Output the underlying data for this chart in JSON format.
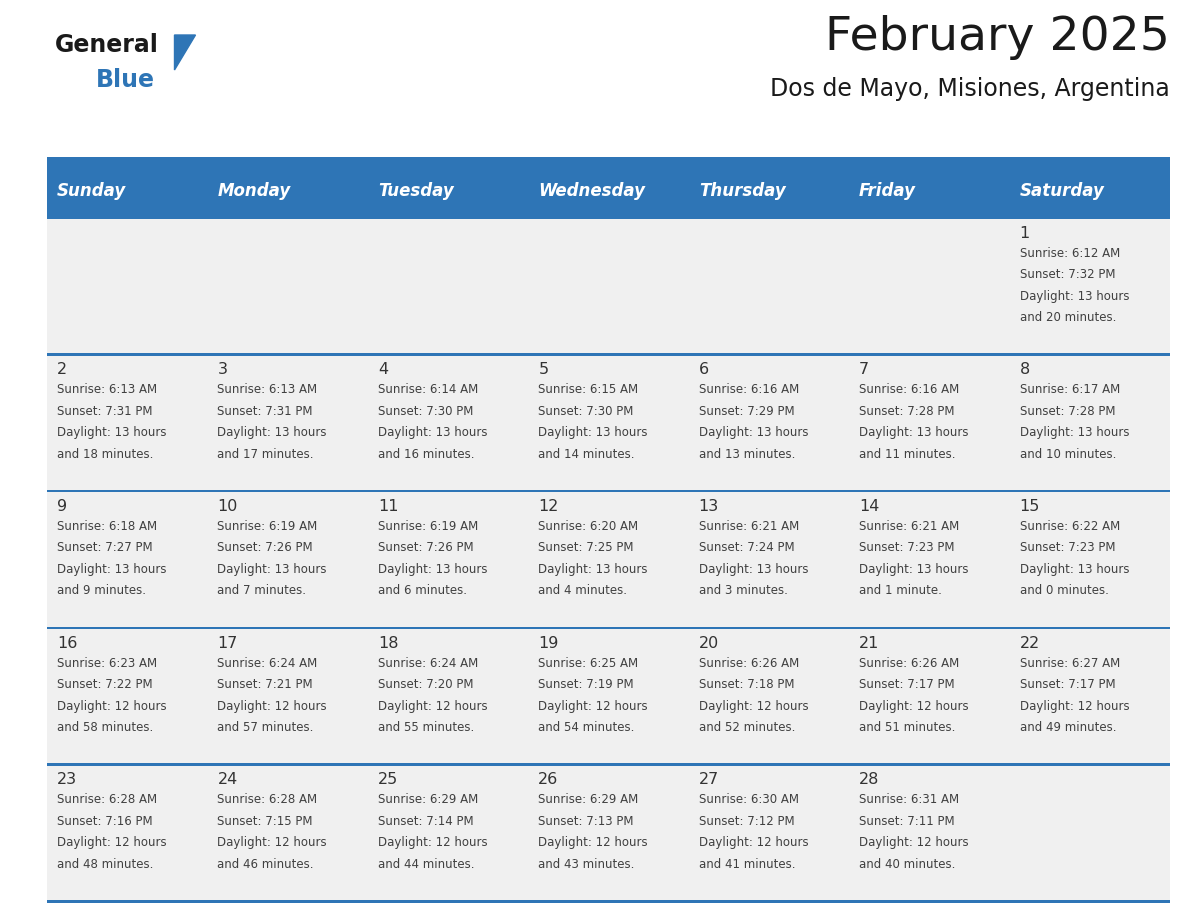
{
  "title": "February 2025",
  "subtitle": "Dos de Mayo, Misiones, Argentina",
  "header_bg_color": "#2e75b6",
  "header_text_color": "#ffffff",
  "cell_bg_color": "#f0f0f0",
  "border_color": "#2e75b6",
  "day_number_color": "#333333",
  "cell_text_color": "#404040",
  "days_of_week": [
    "Sunday",
    "Monday",
    "Tuesday",
    "Wednesday",
    "Thursday",
    "Friday",
    "Saturday"
  ],
  "weeks": [
    [
      {
        "day": "",
        "info": ""
      },
      {
        "day": "",
        "info": ""
      },
      {
        "day": "",
        "info": ""
      },
      {
        "day": "",
        "info": ""
      },
      {
        "day": "",
        "info": ""
      },
      {
        "day": "",
        "info": ""
      },
      {
        "day": "1",
        "info": "Sunrise: 6:12 AM\nSunset: 7:32 PM\nDaylight: 13 hours\nand 20 minutes."
      }
    ],
    [
      {
        "day": "2",
        "info": "Sunrise: 6:13 AM\nSunset: 7:31 PM\nDaylight: 13 hours\nand 18 minutes."
      },
      {
        "day": "3",
        "info": "Sunrise: 6:13 AM\nSunset: 7:31 PM\nDaylight: 13 hours\nand 17 minutes."
      },
      {
        "day": "4",
        "info": "Sunrise: 6:14 AM\nSunset: 7:30 PM\nDaylight: 13 hours\nand 16 minutes."
      },
      {
        "day": "5",
        "info": "Sunrise: 6:15 AM\nSunset: 7:30 PM\nDaylight: 13 hours\nand 14 minutes."
      },
      {
        "day": "6",
        "info": "Sunrise: 6:16 AM\nSunset: 7:29 PM\nDaylight: 13 hours\nand 13 minutes."
      },
      {
        "day": "7",
        "info": "Sunrise: 6:16 AM\nSunset: 7:28 PM\nDaylight: 13 hours\nand 11 minutes."
      },
      {
        "day": "8",
        "info": "Sunrise: 6:17 AM\nSunset: 7:28 PM\nDaylight: 13 hours\nand 10 minutes."
      }
    ],
    [
      {
        "day": "9",
        "info": "Sunrise: 6:18 AM\nSunset: 7:27 PM\nDaylight: 13 hours\nand 9 minutes."
      },
      {
        "day": "10",
        "info": "Sunrise: 6:19 AM\nSunset: 7:26 PM\nDaylight: 13 hours\nand 7 minutes."
      },
      {
        "day": "11",
        "info": "Sunrise: 6:19 AM\nSunset: 7:26 PM\nDaylight: 13 hours\nand 6 minutes."
      },
      {
        "day": "12",
        "info": "Sunrise: 6:20 AM\nSunset: 7:25 PM\nDaylight: 13 hours\nand 4 minutes."
      },
      {
        "day": "13",
        "info": "Sunrise: 6:21 AM\nSunset: 7:24 PM\nDaylight: 13 hours\nand 3 minutes."
      },
      {
        "day": "14",
        "info": "Sunrise: 6:21 AM\nSunset: 7:23 PM\nDaylight: 13 hours\nand 1 minute."
      },
      {
        "day": "15",
        "info": "Sunrise: 6:22 AM\nSunset: 7:23 PM\nDaylight: 13 hours\nand 0 minutes."
      }
    ],
    [
      {
        "day": "16",
        "info": "Sunrise: 6:23 AM\nSunset: 7:22 PM\nDaylight: 12 hours\nand 58 minutes."
      },
      {
        "day": "17",
        "info": "Sunrise: 6:24 AM\nSunset: 7:21 PM\nDaylight: 12 hours\nand 57 minutes."
      },
      {
        "day": "18",
        "info": "Sunrise: 6:24 AM\nSunset: 7:20 PM\nDaylight: 12 hours\nand 55 minutes."
      },
      {
        "day": "19",
        "info": "Sunrise: 6:25 AM\nSunset: 7:19 PM\nDaylight: 12 hours\nand 54 minutes."
      },
      {
        "day": "20",
        "info": "Sunrise: 6:26 AM\nSunset: 7:18 PM\nDaylight: 12 hours\nand 52 minutes."
      },
      {
        "day": "21",
        "info": "Sunrise: 6:26 AM\nSunset: 7:17 PM\nDaylight: 12 hours\nand 51 minutes."
      },
      {
        "day": "22",
        "info": "Sunrise: 6:27 AM\nSunset: 7:17 PM\nDaylight: 12 hours\nand 49 minutes."
      }
    ],
    [
      {
        "day": "23",
        "info": "Sunrise: 6:28 AM\nSunset: 7:16 PM\nDaylight: 12 hours\nand 48 minutes."
      },
      {
        "day": "24",
        "info": "Sunrise: 6:28 AM\nSunset: 7:15 PM\nDaylight: 12 hours\nand 46 minutes."
      },
      {
        "day": "25",
        "info": "Sunrise: 6:29 AM\nSunset: 7:14 PM\nDaylight: 12 hours\nand 44 minutes."
      },
      {
        "day": "26",
        "info": "Sunrise: 6:29 AM\nSunset: 7:13 PM\nDaylight: 12 hours\nand 43 minutes."
      },
      {
        "day": "27",
        "info": "Sunrise: 6:30 AM\nSunset: 7:12 PM\nDaylight: 12 hours\nand 41 minutes."
      },
      {
        "day": "28",
        "info": "Sunrise: 6:31 AM\nSunset: 7:11 PM\nDaylight: 12 hours\nand 40 minutes."
      },
      {
        "day": "",
        "info": ""
      }
    ]
  ],
  "logo_text_general": "General",
  "logo_text_blue": "Blue",
  "logo_color_general": "#1a1a1a",
  "logo_color_blue": "#2e75b6",
  "logo_triangle_color": "#2e75b6",
  "fig_width": 11.88,
  "fig_height": 9.18,
  "dpi": 100
}
